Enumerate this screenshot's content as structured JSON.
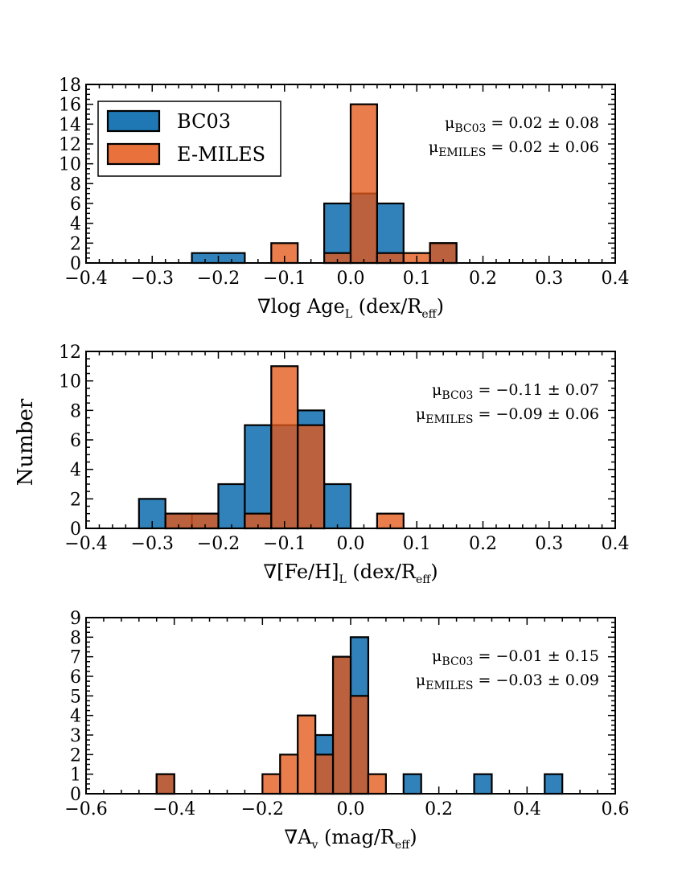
{
  "shared_ylabel": "Number",
  "legend": {
    "bc03": "BC03",
    "emiles": "E-MILES",
    "bc03_color": "#1f77b4",
    "emiles_color": "#e4581a"
  },
  "chart_data": [
    {
      "type": "histogram",
      "id": "age",
      "xlabel": "∇log Age",
      "xlabel_sub": "L",
      "xlabel_tail": " (dex/R",
      "xlabel_tail_sub": "eff",
      "xlabel_end": ")",
      "xlim": [
        -0.4,
        0.4
      ],
      "ylim": [
        0,
        18
      ],
      "xticks": [
        -0.4,
        -0.3,
        -0.2,
        -0.1,
        0.0,
        0.1,
        0.2,
        0.3,
        0.4
      ],
      "xtick_labels": [
        "−0.4",
        "−0.3",
        "−0.2",
        "−0.1",
        "0.0",
        "0.1",
        "0.2",
        "0.3",
        "0.4"
      ],
      "yticks": [
        0,
        2,
        4,
        6,
        8,
        10,
        12,
        14,
        16,
        18
      ],
      "ytick_labels": [
        "0",
        "2",
        "4",
        "6",
        "8",
        "10",
        "12",
        "14",
        "16",
        "18"
      ],
      "series": [
        {
          "name": "BC03",
          "bins": [
            [
              -0.24,
              -0.16,
              1
            ],
            [
              -0.04,
              0.0,
              6
            ],
            [
              0.0,
              0.04,
              7
            ],
            [
              0.04,
              0.08,
              6
            ],
            [
              0.12,
              0.16,
              2
            ]
          ]
        },
        {
          "name": "E-MILES",
          "bins": [
            [
              -0.12,
              -0.08,
              2
            ],
            [
              -0.04,
              0.0,
              1
            ],
            [
              0.0,
              0.04,
              16
            ],
            [
              0.04,
              0.08,
              1
            ],
            [
              0.08,
              0.12,
              1
            ],
            [
              0.12,
              0.16,
              2
            ]
          ]
        }
      ],
      "stats": [
        {
          "label": "μ",
          "sub": "BC03",
          "value": " = 0.02 ± 0.08"
        },
        {
          "label": "μ",
          "sub": "EMILES",
          "value": " = 0.02 ± 0.06"
        }
      ],
      "show_legend": true
    },
    {
      "type": "histogram",
      "id": "feh",
      "xlabel": "∇[Fe/H]",
      "xlabel_sub": "L",
      "xlabel_tail": " (dex/R",
      "xlabel_tail_sub": "eff",
      "xlabel_end": ")",
      "xlim": [
        -0.4,
        0.4
      ],
      "ylim": [
        0,
        12
      ],
      "xticks": [
        -0.4,
        -0.3,
        -0.2,
        -0.1,
        0.0,
        0.1,
        0.2,
        0.3,
        0.4
      ],
      "xtick_labels": [
        "−0.4",
        "−0.3",
        "−0.2",
        "−0.1",
        "0.0",
        "0.1",
        "0.2",
        "0.3",
        "0.4"
      ],
      "yticks": [
        0,
        2,
        4,
        6,
        8,
        10,
        12
      ],
      "ytick_labels": [
        "0",
        "2",
        "4",
        "6",
        "8",
        "10",
        "12"
      ],
      "series": [
        {
          "name": "BC03",
          "bins": [
            [
              -0.32,
              -0.28,
              2
            ],
            [
              -0.28,
              -0.24,
              1
            ],
            [
              -0.24,
              -0.2,
              1
            ],
            [
              -0.2,
              -0.16,
              3
            ],
            [
              -0.16,
              -0.12,
              7
            ],
            [
              -0.12,
              -0.08,
              7
            ],
            [
              -0.08,
              -0.04,
              8
            ],
            [
              -0.04,
              0.0,
              3
            ]
          ]
        },
        {
          "name": "E-MILES",
          "bins": [
            [
              -0.28,
              -0.2,
              1
            ],
            [
              -0.16,
              -0.12,
              1
            ],
            [
              -0.12,
              -0.08,
              11
            ],
            [
              -0.08,
              -0.04,
              7
            ],
            [
              0.04,
              0.08,
              1
            ]
          ]
        }
      ],
      "stats": [
        {
          "label": "μ",
          "sub": "BC03",
          "value": " = −0.11 ± 0.07"
        },
        {
          "label": "μ",
          "sub": "EMILES",
          "value": " = −0.09 ± 0.06"
        }
      ],
      "show_legend": false
    },
    {
      "type": "histogram",
      "id": "av",
      "xlabel": "∇A",
      "xlabel_sub": "v",
      "xlabel_tail": " (mag/R",
      "xlabel_tail_sub": "eff",
      "xlabel_end": ")",
      "xlim": [
        -0.6,
        0.6
      ],
      "ylim": [
        0,
        9
      ],
      "xticks": [
        -0.6,
        -0.4,
        -0.2,
        0.0,
        0.2,
        0.4,
        0.6
      ],
      "xtick_labels": [
        "−0.6",
        "−0.4",
        "−0.2",
        "0.0",
        "0.2",
        "0.4",
        "0.6"
      ],
      "yticks": [
        0,
        1,
        2,
        3,
        4,
        5,
        6,
        7,
        8,
        9
      ],
      "ytick_labels": [
        "0",
        "1",
        "2",
        "3",
        "4",
        "5",
        "6",
        "7",
        "8",
        "9"
      ],
      "series": [
        {
          "name": "BC03",
          "bins": [
            [
              -0.44,
              -0.4,
              1
            ],
            [
              -0.08,
              -0.04,
              3
            ],
            [
              -0.04,
              0.0,
              7
            ],
            [
              0.0,
              0.04,
              8
            ],
            [
              0.12,
              0.16,
              1
            ],
            [
              0.28,
              0.32,
              1
            ],
            [
              0.44,
              0.48,
              1
            ]
          ]
        },
        {
          "name": "E-MILES",
          "bins": [
            [
              -0.44,
              -0.4,
              1
            ],
            [
              -0.2,
              -0.16,
              1
            ],
            [
              -0.16,
              -0.12,
              2
            ],
            [
              -0.12,
              -0.08,
              4
            ],
            [
              -0.08,
              -0.04,
              2
            ],
            [
              -0.04,
              0.0,
              7
            ],
            [
              0.0,
              0.04,
              5
            ],
            [
              0.04,
              0.08,
              1
            ]
          ]
        }
      ],
      "stats": [
        {
          "label": "μ",
          "sub": "BC03",
          "value": " = −0.01 ± 0.15"
        },
        {
          "label": "μ",
          "sub": "EMILES",
          "value": " = −0.03 ± 0.09"
        }
      ],
      "show_legend": false
    }
  ]
}
